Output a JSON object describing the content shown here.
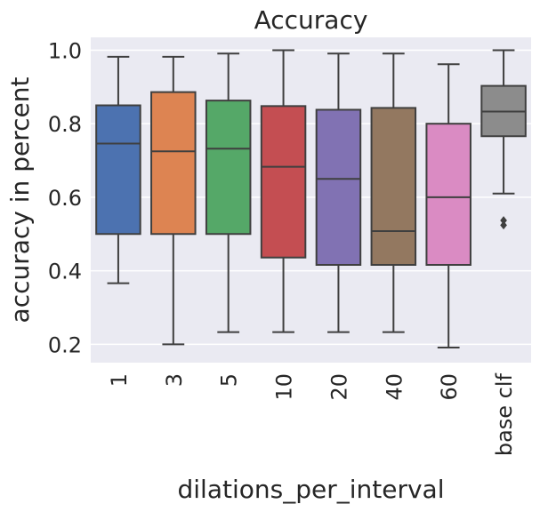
{
  "chart_data": {
    "type": "box",
    "title": "Accuracy",
    "xlabel": "dilations_per_interval",
    "ylabel": "accuracy in percent",
    "ylim": [
      0.15,
      1.035
    ],
    "yticks": [
      0.2,
      0.4,
      0.6,
      0.8,
      1.0
    ],
    "ytick_labels": [
      "0.2",
      "0.4",
      "0.6",
      "0.8",
      "1.0"
    ],
    "grid": true,
    "categories": [
      "1",
      "3",
      "5",
      "10",
      "20",
      "40",
      "60",
      "base clf"
    ],
    "colors": [
      "#4c72b0",
      "#dd8452",
      "#55a868",
      "#c44e52",
      "#8172b3",
      "#937860",
      "#da8bc3",
      "#8c8c8c"
    ],
    "boxes": [
      {
        "category": "1",
        "whisker_low": 0.366,
        "q1": 0.5,
        "median": 0.746,
        "q3": 0.85,
        "whisker_high": 0.982,
        "outliers": []
      },
      {
        "category": "3",
        "whisker_low": 0.2,
        "q1": 0.5,
        "median": 0.725,
        "q3": 0.886,
        "whisker_high": 0.982,
        "outliers": []
      },
      {
        "category": "5",
        "whisker_low": 0.233,
        "q1": 0.5,
        "median": 0.732,
        "q3": 0.863,
        "whisker_high": 0.991,
        "outliers": []
      },
      {
        "category": "10",
        "whisker_low": 0.233,
        "q1": 0.436,
        "median": 0.683,
        "q3": 0.848,
        "whisker_high": 1.0,
        "outliers": []
      },
      {
        "category": "20",
        "whisker_low": 0.233,
        "q1": 0.416,
        "median": 0.65,
        "q3": 0.838,
        "whisker_high": 0.991,
        "outliers": []
      },
      {
        "category": "40",
        "whisker_low": 0.233,
        "q1": 0.416,
        "median": 0.508,
        "q3": 0.843,
        "whisker_high": 0.991,
        "outliers": []
      },
      {
        "category": "60",
        "whisker_low": 0.191,
        "q1": 0.416,
        "median": 0.6,
        "q3": 0.8,
        "whisker_high": 0.962,
        "outliers": []
      },
      {
        "category": "base clf",
        "whisker_low": 0.61,
        "q1": 0.766,
        "median": 0.833,
        "q3": 0.903,
        "whisker_high": 1.0,
        "outliers": [
          0.524,
          0.537
        ]
      }
    ]
  }
}
